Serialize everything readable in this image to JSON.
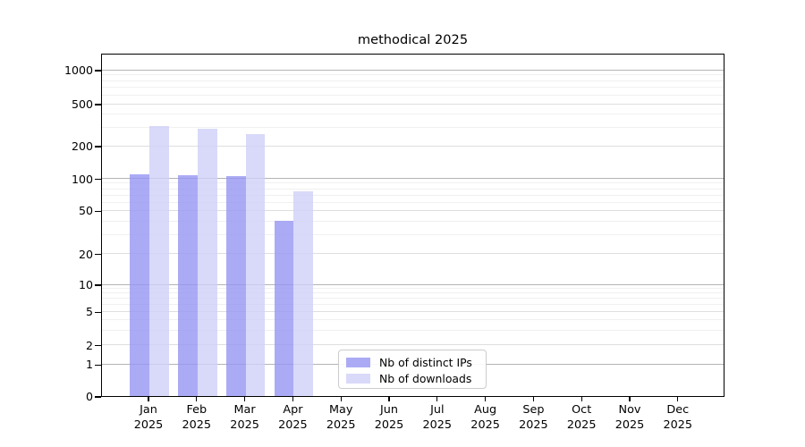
{
  "chart_data": {
    "type": "bar",
    "title": "methodical 2025",
    "categories": [
      "Jan 2025",
      "Feb 2025",
      "Mar 2025",
      "Apr 2025",
      "May 2025",
      "Jun 2025",
      "Jul 2025",
      "Aug 2025",
      "Sep 2025",
      "Oct 2025",
      "Nov 2025",
      "Dec 2025"
    ],
    "series": [
      {
        "name": "Nb of distinct IPs",
        "color": "#9696f2",
        "values": [
          108,
          107,
          104,
          40,
          0,
          0,
          0,
          0,
          0,
          0,
          0,
          0
        ]
      },
      {
        "name": "Nb of downloads",
        "color": "#d0d0f8",
        "values": [
          310,
          290,
          260,
          75,
          0,
          0,
          0,
          0,
          0,
          0,
          0,
          0
        ]
      }
    ],
    "y_ticks": [
      0,
      1,
      2,
      5,
      10,
      20,
      50,
      100,
      200,
      500,
      1000
    ],
    "ylim": [
      0,
      1000
    ],
    "y_scale": "log-like with 0 baseline (ticks 0,1,2,5,10,20,50,100,200,500,1000)",
    "xlabel": "",
    "ylabel": "",
    "grid": "on",
    "legend_position": "bottom-center-inside",
    "grid_colors": {
      "power10": "#b4b4b4",
      "labeled": "#dedede",
      "minor": "#f0f0f0"
    }
  }
}
